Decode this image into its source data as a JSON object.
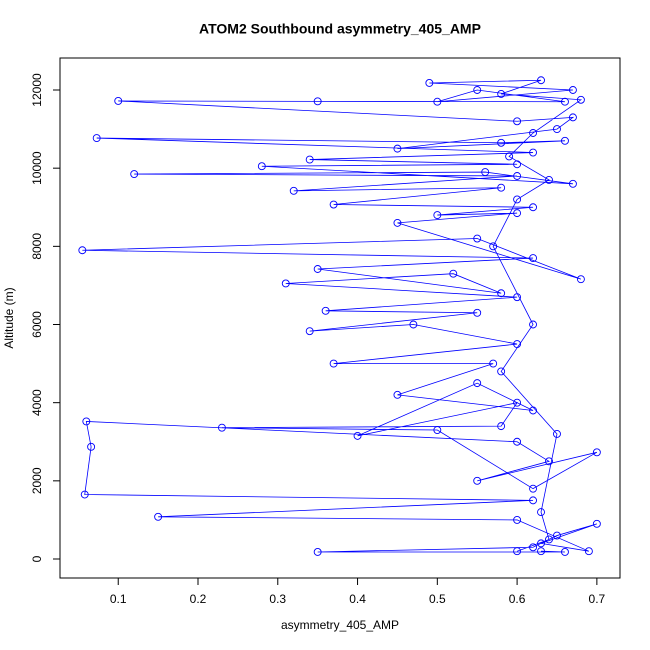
{
  "chart_data": {
    "type": "line",
    "title": "ATOM2 Southbound asymmetry_405_AMP",
    "x_label": "asymmetry_405_AMP",
    "y_label": "Altitude (m)",
    "x": [
      0.63,
      0.66,
      0.35,
      0.62,
      0.65,
      0.7,
      0.63,
      0.69,
      0.6,
      0.15,
      0.62,
      0.058,
      0.066,
      0.06,
      0.6,
      0.64,
      0.55,
      0.7,
      0.62,
      0.5,
      0.23,
      0.58,
      0.6,
      0.4,
      0.55,
      0.62,
      0.45,
      0.57,
      0.37,
      0.6,
      0.47,
      0.34,
      0.55,
      0.36,
      0.6,
      0.31,
      0.52,
      0.58,
      0.35,
      0.62,
      0.055,
      0.55,
      0.68,
      0.45,
      0.6,
      0.5,
      0.62,
      0.37,
      0.58,
      0.32,
      0.6,
      0.12,
      0.56,
      0.67,
      0.28,
      0.6,
      0.34,
      0.62,
      0.073,
      0.58,
      0.66,
      0.45,
      0.65,
      0.67,
      0.6,
      0.1,
      0.35,
      0.66,
      0.55,
      0.5,
      0.67,
      0.49,
      0.63,
      0.58,
      0.68,
      0.62,
      0.59,
      0.64,
      0.6,
      0.57,
      0.62,
      0.58,
      0.65,
      0.63,
      0.64,
      0.6
    ],
    "series": [
      {
        "color": "#0000ff",
        "values": [
          200,
          180,
          180,
          300,
          600,
          900,
          400,
          200,
          1000,
          1080,
          1500,
          1650,
          2870,
          3520,
          3000,
          2500,
          2000,
          2730,
          1800,
          3300,
          3360,
          3400,
          4000,
          3150,
          4500,
          3800,
          4200,
          5000,
          5000,
          5500,
          6000,
          5830,
          6300,
          6350,
          6700,
          7050,
          7300,
          6800,
          7420,
          7700,
          7900,
          8200,
          7160,
          8600,
          8850,
          8800,
          9000,
          9070,
          9500,
          9420,
          9800,
          9850,
          9900,
          9600,
          10050,
          10100,
          10220,
          10400,
          10770,
          10650,
          10700,
          10500,
          11000,
          11300,
          11200,
          11720,
          11710,
          11700,
          12000,
          11700,
          12000,
          12180,
          12250,
          11900,
          11750,
          10900,
          10300,
          9700,
          9200,
          8000,
          6000,
          4800,
          3200,
          1200,
          500,
          200
        ]
      }
    ],
    "xlim": [
      0.027,
      0.729
    ],
    "ylim": [
      -486,
      12819
    ],
    "xticks": [
      0.1,
      0.2,
      0.3,
      0.4,
      0.5,
      0.6,
      0.7
    ],
    "yticks": [
      0,
      2000,
      4000,
      6000,
      8000,
      10000,
      12000
    ]
  }
}
